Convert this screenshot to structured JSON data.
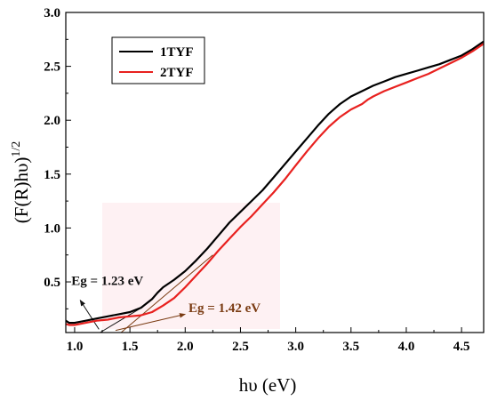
{
  "chart_data": {
    "type": "line",
    "title": "",
    "xlabel": "hυ (eV)",
    "ylabel": "(F(R)hυ)",
    "ylabel_sup": "1/2",
    "xlim": [
      0.92,
      4.7
    ],
    "ylim": [
      0.03,
      3.0
    ],
    "xticks": [
      1.0,
      1.5,
      2.0,
      2.5,
      3.0,
      3.5,
      4.0,
      4.5
    ],
    "xtick_labels": [
      "1.0",
      "1.5",
      "2.0",
      "2.5",
      "3.0",
      "3.5",
      "4.0",
      "4.5"
    ],
    "yticks": [
      0.5,
      1.0,
      1.5,
      2.0,
      2.5,
      3.0
    ],
    "ytick_labels": [
      "0.5",
      "1.0",
      "1.5",
      "2.0",
      "2.5",
      "3.0"
    ],
    "legend_position": "top-left",
    "series": [
      {
        "name": "1TYF",
        "color": "#000000",
        "x": [
          0.92,
          0.95,
          1.0,
          1.1,
          1.2,
          1.3,
          1.4,
          1.5,
          1.6,
          1.7,
          1.75,
          1.8,
          1.9,
          2.0,
          2.1,
          2.2,
          2.3,
          2.4,
          2.5,
          2.6,
          2.7,
          2.8,
          2.9,
          3.0,
          3.1,
          3.2,
          3.3,
          3.4,
          3.5,
          3.6,
          3.7,
          3.8,
          3.9,
          4.0,
          4.1,
          4.2,
          4.3,
          4.4,
          4.5,
          4.6,
          4.7
        ],
        "y": [
          0.14,
          0.12,
          0.12,
          0.14,
          0.16,
          0.18,
          0.2,
          0.22,
          0.26,
          0.34,
          0.4,
          0.45,
          0.52,
          0.6,
          0.7,
          0.81,
          0.93,
          1.05,
          1.15,
          1.25,
          1.35,
          1.47,
          1.59,
          1.71,
          1.83,
          1.95,
          2.06,
          2.15,
          2.22,
          2.27,
          2.32,
          2.36,
          2.4,
          2.43,
          2.46,
          2.49,
          2.52,
          2.56,
          2.6,
          2.66,
          2.73
        ]
      },
      {
        "name": "2TYF",
        "color": "#e8211f",
        "x": [
          0.92,
          0.95,
          1.0,
          1.1,
          1.2,
          1.3,
          1.4,
          1.5,
          1.6,
          1.7,
          1.8,
          1.9,
          2.0,
          2.1,
          2.2,
          2.3,
          2.4,
          2.5,
          2.6,
          2.7,
          2.8,
          2.9,
          3.0,
          3.1,
          3.2,
          3.3,
          3.4,
          3.5,
          3.6,
          3.65,
          3.7,
          3.8,
          3.9,
          4.0,
          4.1,
          4.2,
          4.3,
          4.4,
          4.5,
          4.6,
          4.7
        ],
        "y": [
          0.11,
          0.1,
          0.1,
          0.12,
          0.14,
          0.15,
          0.17,
          0.18,
          0.19,
          0.22,
          0.28,
          0.35,
          0.45,
          0.56,
          0.67,
          0.79,
          0.9,
          1.01,
          1.11,
          1.22,
          1.33,
          1.45,
          1.58,
          1.71,
          1.83,
          1.94,
          2.03,
          2.1,
          2.15,
          2.19,
          2.22,
          2.27,
          2.31,
          2.35,
          2.39,
          2.43,
          2.48,
          2.53,
          2.58,
          2.64,
          2.71
        ]
      }
    ],
    "annotations": [
      {
        "text": "Eg = 1.23 eV",
        "color": "#111111",
        "label_at": [
          0.97,
          0.47
        ],
        "arrow_tail": [
          1.22,
          0.06
        ],
        "arrow_head": [
          1.05,
          0.33
        ],
        "tangent": [
          [
            1.23,
            0.03
          ],
          [
            1.62,
            0.27
          ]
        ]
      },
      {
        "text": "Eg = 1.42 eV",
        "color": "#7a3b12",
        "label_at": [
          2.03,
          0.22
        ],
        "arrow_tail": [
          1.37,
          0.05
        ],
        "arrow_head": [
          2.0,
          0.2
        ],
        "tangent": [
          [
            1.42,
            0.03
          ],
          [
            2.25,
            0.75
          ]
        ]
      }
    ]
  }
}
